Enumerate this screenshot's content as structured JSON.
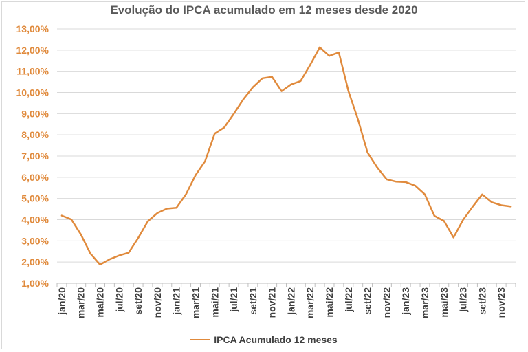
{
  "chart_data": {
    "type": "line",
    "title": "Evolução do IPCA acumulado em 12 meses desde 2020",
    "xlabel": "",
    "ylabel": "",
    "ylim": [
      1,
      13
    ],
    "grid": true,
    "legend_position": "bottom",
    "color": "#e08a3c",
    "y_tick_labels": [
      "1,00%",
      "2,00%",
      "3,00%",
      "4,00%",
      "5,00%",
      "6,00%",
      "7,00%",
      "8,00%",
      "9,00%",
      "10,00%",
      "11,00%",
      "12,00%",
      "13,00%"
    ],
    "x_tick_labels": [
      "jan/20",
      "mar/20",
      "mai/20",
      "jul/20",
      "set/20",
      "nov/20",
      "jan/21",
      "mar/21",
      "mai/21",
      "jul/21",
      "set/21",
      "nov/21",
      "jan/22",
      "mar/22",
      "mai/22",
      "jul/22",
      "set/22",
      "nov/22",
      "jan/23",
      "mar/23",
      "mai/23",
      "jul/23",
      "set/23",
      "nov/23"
    ],
    "categories": [
      "jan/20",
      "fev/20",
      "mar/20",
      "abr/20",
      "mai/20",
      "jun/20",
      "jul/20",
      "ago/20",
      "set/20",
      "out/20",
      "nov/20",
      "dez/20",
      "jan/21",
      "fev/21",
      "mar/21",
      "abr/21",
      "mai/21",
      "jun/21",
      "jul/21",
      "ago/21",
      "set/21",
      "out/21",
      "nov/21",
      "dez/21",
      "jan/22",
      "fev/22",
      "mar/22",
      "abr/22",
      "mai/22",
      "jun/22",
      "jul/22",
      "ago/22",
      "set/22",
      "out/22",
      "nov/22",
      "dez/22",
      "jan/23",
      "fev/23",
      "mar/23",
      "abr/23",
      "mai/23",
      "jun/23",
      "jul/23",
      "ago/23",
      "set/23",
      "out/23",
      "nov/23",
      "dez/23"
    ],
    "series": [
      {
        "name": "IPCA Acumulado 12 meses",
        "values": [
          4.19,
          4.01,
          3.3,
          2.4,
          1.88,
          2.13,
          2.31,
          2.44,
          3.14,
          3.92,
          4.31,
          4.52,
          4.56,
          5.2,
          6.1,
          6.76,
          8.06,
          8.35,
          8.99,
          9.68,
          10.25,
          10.67,
          10.74,
          10.06,
          10.38,
          10.54,
          11.3,
          12.13,
          11.73,
          11.89,
          10.07,
          8.73,
          7.17,
          6.47,
          5.9,
          5.79,
          5.77,
          5.6,
          5.19,
          4.18,
          3.94,
          3.16,
          3.99,
          4.61,
          5.19,
          4.82,
          4.68,
          4.62
        ]
      }
    ]
  },
  "legend": {
    "label": "IPCA Acumulado 12 meses"
  }
}
